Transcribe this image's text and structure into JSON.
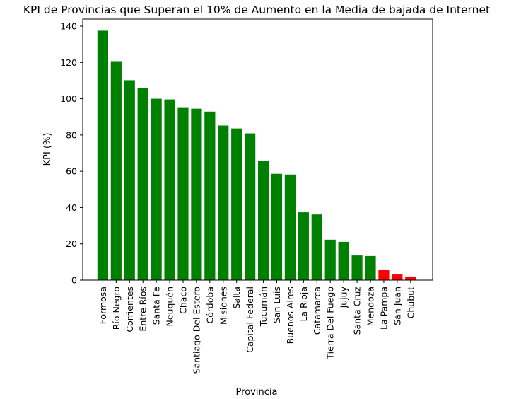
{
  "chart_data": {
    "type": "bar",
    "title": "KPI de Provincias que Superan el 10% de Aumento en la Media de bajada de Internet",
    "xlabel": "Provincia",
    "ylabel": "KPI (%)",
    "ylim": [
      0,
      144
    ],
    "yticks": [
      0,
      20,
      40,
      60,
      80,
      100,
      120,
      140
    ],
    "grid": false,
    "categories": [
      "Formosa",
      "Río Negro",
      "Corrientes",
      "Entre Ríos",
      "Santa Fe",
      "Neuquén",
      "Chaco",
      "Santiago Del Estero",
      "Córdoba",
      "Misiones",
      "Salta",
      "Capital Federal",
      "Tucumán",
      "San Luis",
      "Buenos Aires",
      "La Rioja",
      "Catamarca",
      "Tierra Del Fuego",
      "Jujuy",
      "Santa Cruz",
      "Mendoza",
      "La Pampa",
      "San Juan",
      "Chubut"
    ],
    "values": [
      137.5,
      120.7,
      110.2,
      105.8,
      100.0,
      99.6,
      95.3,
      94.5,
      92.9,
      85.2,
      83.6,
      80.9,
      65.7,
      58.6,
      58.2,
      37.4,
      36.2,
      22.3,
      21.1,
      13.6,
      13.3,
      5.5,
      3.1,
      2.0
    ],
    "bar_colors": [
      "green",
      "green",
      "green",
      "green",
      "green",
      "green",
      "green",
      "green",
      "green",
      "green",
      "green",
      "green",
      "green",
      "green",
      "green",
      "green",
      "green",
      "green",
      "green",
      "green",
      "green",
      "red",
      "red",
      "red"
    ],
    "colors": {
      "green": "#008000",
      "red": "#ff0000"
    }
  }
}
